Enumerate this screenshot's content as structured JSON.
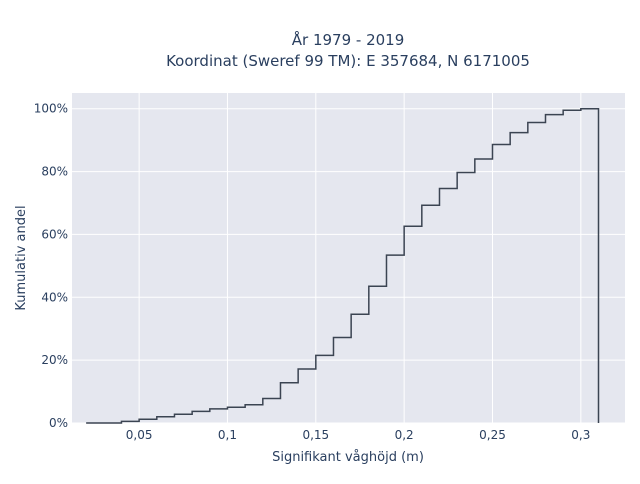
{
  "chart_data": {
    "type": "line",
    "subtype": "cumulative-step",
    "title_lines": [
      "År 1979 - 2019",
      "Koordinat (Sweref 99 TM): E 357684, N 6171005"
    ],
    "xlabel": "Signifikant våghöjd (m)",
    "ylabel": "Kumulativ andel",
    "x_ticks": [
      {
        "value": 0.05,
        "label": "0,05"
      },
      {
        "value": 0.1,
        "label": "0,1"
      },
      {
        "value": 0.15,
        "label": "0,15"
      },
      {
        "value": 0.2,
        "label": "0,2"
      },
      {
        "value": 0.25,
        "label": "0,25"
      },
      {
        "value": 0.3,
        "label": "0,3"
      }
    ],
    "y_ticks": [
      {
        "value": 0,
        "label": "0%"
      },
      {
        "value": 0.2,
        "label": "20%"
      },
      {
        "value": 0.4,
        "label": "40%"
      },
      {
        "value": 0.6,
        "label": "60%"
      },
      {
        "value": 0.8,
        "label": "80%"
      },
      {
        "value": 1.0,
        "label": "100%"
      }
    ],
    "xlim": [
      0.012,
      0.325
    ],
    "ylim": [
      0,
      1.05
    ],
    "grid": true,
    "bin_edges": [
      0.02,
      0.03,
      0.04,
      0.05,
      0.06,
      0.07,
      0.08,
      0.09,
      0.1,
      0.11,
      0.12,
      0.13,
      0.14,
      0.15,
      0.16,
      0.17,
      0.18,
      0.19,
      0.2,
      0.21,
      0.22,
      0.23,
      0.24,
      0.25,
      0.26,
      0.27,
      0.28,
      0.29,
      0.3,
      0.31
    ],
    "cumulative": [
      0.0,
      0.0,
      0.005,
      0.012,
      0.02,
      0.028,
      0.037,
      0.045,
      0.05,
      0.058,
      0.078,
      0.128,
      0.172,
      0.215,
      0.272,
      0.346,
      0.435,
      0.534,
      0.626,
      0.693,
      0.746,
      0.797,
      0.84,
      0.886,
      0.924,
      0.956,
      0.981,
      0.995,
      1.0
    ],
    "line_color": "#3b4452",
    "plot_bg": "#e5e7ef",
    "grid_color": "#ffffff"
  }
}
